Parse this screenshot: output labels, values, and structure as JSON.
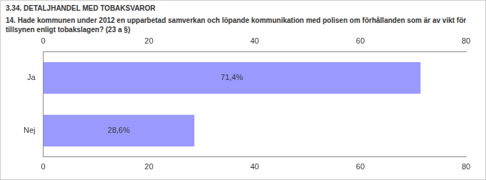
{
  "chart_data": {
    "type": "bar",
    "orientation": "horizontal",
    "title": "3.34. DETALJHANDEL MED TOBAKSVAROR",
    "subtitle": "14. Hade kommunen under 2012 en upparbetad samverkan och löpande kommunikation med polisen om förhållanden som är av vikt för tillsynen enligt tobakslagen? (23 a §)",
    "categories": [
      "Ja",
      "Nej"
    ],
    "values": [
      71.4,
      28.6
    ],
    "value_labels": [
      "71,4%",
      "28,6%"
    ],
    "data_labels": true,
    "color": "#9999ff",
    "xlim": [
      0,
      80
    ],
    "xticks": [
      0,
      20,
      40,
      60,
      80
    ],
    "grid": false
  }
}
